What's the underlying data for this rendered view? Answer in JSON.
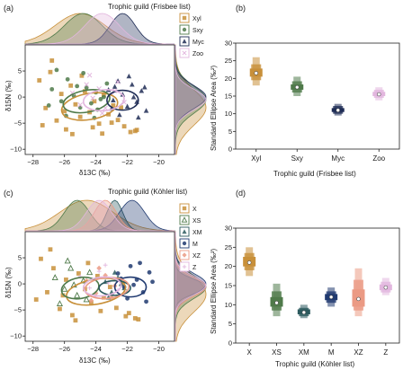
{
  "colors": {
    "Xyl": "#c8903a",
    "Sxy": "#4f7a4a",
    "Myc": "#1e2c55",
    "Zoo": "#e2b6de",
    "X": "#c8903a",
    "XS": "#4f7a4a",
    "XM": "#2c5a5e",
    "M": "#203a70",
    "XZ": "#eb9a84",
    "Z": "#e2b6de",
    "axis": "#222222"
  },
  "panels": {
    "a": {
      "panel_label": "(a)",
      "title": "Trophic guild (Frisbee list)",
      "xlabel": "δ13C (‰)",
      "ylabel": "δ15N (‰)",
      "xticks": [
        "−28",
        "−26",
        "−24",
        "−22",
        "−20"
      ],
      "yticks": [
        "−10",
        "−5",
        "0",
        "5"
      ],
      "legend": [
        "Xyl",
        "Sxy",
        "Myc",
        "Zoo"
      ]
    },
    "b": {
      "panel_label": "(b)",
      "xlabel": "Trophic guild (Frisbee list)",
      "ylabel": "Standard Ellipse Area (‰²)",
      "yticks": [
        "0",
        "5",
        "10",
        "15",
        "20",
        "25",
        "30"
      ]
    },
    "c": {
      "panel_label": "(c)",
      "title": "Trophic guild (Köhler list)",
      "xlabel": "δ13C (‰)",
      "ylabel": "δ15N (‰)",
      "xticks": [
        "−28",
        "−26",
        "−24",
        "−22",
        "−20"
      ],
      "yticks": [
        "−10",
        "−5",
        "0",
        "5"
      ],
      "legend": [
        "X",
        "XS",
        "XM",
        "M",
        "XZ",
        "Z"
      ]
    },
    "d": {
      "panel_label": "(d)",
      "xlabel": "Trophic guild (Köhler list)",
      "ylabel": "Standard Ellipse Area (‰²)",
      "yticks": [
        "0",
        "5",
        "10",
        "15",
        "20",
        "25",
        "30"
      ]
    }
  },
  "chart_data": [
    {
      "panel": "a",
      "type": "scatter",
      "title": "Trophic guild (Frisbee list)",
      "xlabel": "δ13C (‰)",
      "ylabel": "δ15N (‰)",
      "xlim": [
        -28.5,
        -19
      ],
      "ylim": [
        -11,
        10
      ],
      "legend": "right",
      "ellipses": [
        {
          "name": "Xyl",
          "cx": -24.4,
          "cy": -1.8,
          "rx": 1.8,
          "ry": 2.5,
          "angle": 10
        },
        {
          "name": "Sxy",
          "cx": -24.6,
          "cy": -0.8,
          "rx": 1.5,
          "ry": 2.1,
          "angle": 10
        },
        {
          "name": "Myc",
          "cx": -22.3,
          "cy": -0.6,
          "rx": 1.0,
          "ry": 1.9,
          "angle": 0
        },
        {
          "name": "Zoo",
          "cx": -23.5,
          "cy": -0.6,
          "rx": 1.3,
          "ry": 2.0,
          "angle": 5
        }
      ],
      "series": [
        {
          "name": "Xyl",
          "x": [
            -27.6,
            -27.2,
            -26.9,
            -26.5,
            -26.2,
            -25.9,
            -25.6,
            -25.3,
            -25.0,
            -24.7,
            -24.4,
            -24.1,
            -23.8,
            -23.5,
            -23.2,
            -22.9,
            -22.6,
            -22.2,
            -21.8,
            -21.4,
            -26.8,
            -25.5,
            -24.2,
            -23.0,
            -21.5,
            -26.0,
            -24.9,
            -23.6,
            -22.4,
            -27.4
          ],
          "y": [
            3.2,
            -2.1,
            4.8,
            -4.5,
            0.6,
            -6.2,
            2.2,
            -1.4,
            -3.8,
            1.1,
            -2.9,
            -0.8,
            -5.1,
            0.4,
            -3.3,
            -1.6,
            -4.4,
            -5.6,
            -6.7,
            -6.3,
            7.0,
            -7.1,
            -5.8,
            -4.9,
            -6.5,
            -2.7,
            4.1,
            -7.0,
            -2.0,
            -5.4
          ]
        },
        {
          "name": "Sxy",
          "x": [
            -26.8,
            -26.2,
            -25.8,
            -25.4,
            -25.0,
            -24.6,
            -24.3,
            -24.0,
            -23.7,
            -23.3,
            -25.9,
            -24.8,
            -23.9,
            -26.5,
            -25.2,
            -24.1,
            -27.0,
            -23.5
          ],
          "y": [
            1.5,
            -0.8,
            3.4,
            0.2,
            -2.0,
            1.8,
            -1.2,
            0.9,
            -0.4,
            2.6,
            -3.6,
            4.6,
            -2.4,
            5.2,
            2.1,
            -4.0,
            -1.6,
            0.0
          ]
        },
        {
          "name": "Myc",
          "x": [
            -23.2,
            -22.9,
            -22.6,
            -22.3,
            -22.0,
            -21.7,
            -21.4,
            -21.1,
            -20.8,
            -22.5,
            -21.9,
            -21.3,
            -22.8,
            -21.6,
            -20.9,
            -23.0
          ],
          "y": [
            1.4,
            -0.6,
            3.1,
            0.5,
            -1.8,
            2.4,
            -0.9,
            1.2,
            -2.6,
            -3.4,
            4.0,
            -3.9,
            2.0,
            0.0,
            1.9,
            -2.2
          ]
        },
        {
          "name": "Zoo",
          "x": [
            -25.5,
            -25.0,
            -24.6,
            -24.2,
            -23.8,
            -23.4,
            -23.0,
            -22.6,
            -22.2,
            -24.4,
            -23.6,
            -22.8
          ],
          "y": [
            0.8,
            -1.5,
            2.4,
            -0.2,
            1.6,
            -2.1,
            0.4,
            2.9,
            -1.0,
            4.2,
            -3.1,
            1.2
          ]
        }
      ],
      "marginal_x": [
        {
          "name": "Xyl",
          "mean": -25.0,
          "sd": 1.6
        },
        {
          "name": "Sxy",
          "mean": -24.8,
          "sd": 1.2
        },
        {
          "name": "Myc",
          "mean": -22.3,
          "sd": 0.8
        },
        {
          "name": "Zoo",
          "mean": -23.6,
          "sd": 1.1
        }
      ],
      "marginal_y": [
        {
          "name": "Xyl",
          "mean": -2.0,
          "sd": 3.4
        },
        {
          "name": "Sxy",
          "mean": -0.5,
          "sd": 2.6
        },
        {
          "name": "Myc",
          "mean": 0.0,
          "sd": 2.2
        },
        {
          "name": "Zoo",
          "mean": -0.5,
          "sd": 2.0
        }
      ]
    },
    {
      "panel": "b",
      "type": "box",
      "xlabel": "Trophic guild (Frisbee list)",
      "ylabel": "Standard Ellipse Area (‰²)",
      "ylim": [
        0,
        30
      ],
      "categories": [
        "Xyl",
        "Sxy",
        "Myc",
        "Zoo"
      ],
      "values": [
        {
          "mode": 21.5,
          "ci95": [
            18.0,
            26.0
          ],
          "ci75": [
            19.5,
            24.0
          ],
          "ci50": [
            20.5,
            22.8
          ]
        },
        {
          "mode": 17.5,
          "ci95": [
            15.0,
            20.5
          ],
          "ci75": [
            16.0,
            19.2
          ],
          "ci50": [
            16.8,
            18.3
          ]
        },
        {
          "mode": 11.0,
          "ci95": [
            9.5,
            12.8
          ],
          "ci75": [
            10.0,
            12.2
          ],
          "ci50": [
            10.5,
            11.6
          ]
        },
        {
          "mode": 15.5,
          "ci95": [
            13.8,
            17.5
          ],
          "ci75": [
            14.5,
            16.8
          ],
          "ci50": [
            15.0,
            16.2
          ]
        }
      ]
    },
    {
      "panel": "c",
      "type": "scatter",
      "title": "Trophic guild (Köhler list)",
      "xlabel": "δ13C (‰)",
      "ylabel": "δ15N (‰)",
      "xlim": [
        -28.5,
        -19
      ],
      "ylim": [
        -11,
        10
      ],
      "legend": "right",
      "ellipses": [
        {
          "name": "X",
          "cx": -24.0,
          "cy": -1.5,
          "rx": 1.9,
          "ry": 2.4,
          "angle": 10
        },
        {
          "name": "XS",
          "cx": -25.0,
          "cy": -0.8,
          "rx": 1.2,
          "ry": 2.0,
          "angle": 10
        },
        {
          "name": "XM",
          "cx": -22.8,
          "cy": -0.8,
          "rx": 1.0,
          "ry": 1.4,
          "angle": 0
        },
        {
          "name": "M",
          "cx": -21.8,
          "cy": -0.6,
          "rx": 1.0,
          "ry": 1.9,
          "angle": 0
        },
        {
          "name": "XZ",
          "cx": -23.3,
          "cy": -0.8,
          "rx": 1.4,
          "ry": 2.0,
          "angle": 5
        },
        {
          "name": "Z",
          "cx": -23.6,
          "cy": -0.5,
          "rx": 1.2,
          "ry": 1.8,
          "angle": 5
        }
      ],
      "series": [
        {
          "name": "X",
          "x": [
            -27.5,
            -27.1,
            -26.7,
            -26.3,
            -25.9,
            -25.5,
            -25.1,
            -24.7,
            -24.3,
            -23.9,
            -23.5,
            -23.1,
            -22.7,
            -22.3,
            -21.9,
            -21.5,
            -26.9,
            -25.3,
            -23.7,
            -22.1,
            -27.8,
            -24.5,
            -21.3,
            -26.1
          ],
          "y": [
            4.8,
            -1.6,
            3.0,
            -4.8,
            0.8,
            -6.0,
            2.0,
            -1.0,
            -3.6,
            1.5,
            -2.6,
            -0.6,
            -4.6,
            0.2,
            -5.6,
            -6.6,
            6.6,
            -7.0,
            -5.2,
            -6.2,
            -3.0,
            4.0,
            -6.8,
            -2.2
          ]
        },
        {
          "name": "XS",
          "x": [
            -26.6,
            -26.0,
            -25.6,
            -25.2,
            -24.8,
            -24.4,
            -26.3,
            -25.4,
            -24.6,
            -25.8
          ],
          "y": [
            1.2,
            -1.0,
            3.0,
            -2.2,
            0.6,
            2.2,
            -3.8,
            -0.2,
            -3.0,
            4.4
          ]
        },
        {
          "name": "XM",
          "x": [
            -23.4,
            -23.0,
            -22.6,
            -22.2,
            -23.2,
            -22.4,
            -22.8
          ],
          "y": [
            0.4,
            -1.6,
            1.2,
            -0.8,
            -2.6,
            0.0,
            2.2
          ]
        },
        {
          "name": "M",
          "x": [
            -22.6,
            -22.2,
            -21.8,
            -21.4,
            -21.0,
            -20.6,
            -22.0,
            -21.2,
            -20.8,
            -21.6,
            -22.4,
            -20.4
          ],
          "y": [
            2.0,
            -0.6,
            3.4,
            0.8,
            -1.6,
            2.2,
            -2.8,
            4.0,
            -3.4,
            -0.2,
            1.0,
            0.4
          ]
        },
        {
          "name": "XZ",
          "x": [
            -24.6,
            -24.0,
            -23.4,
            -22.8,
            -23.8,
            -23.0,
            -24.3
          ],
          "y": [
            0.6,
            -1.8,
            1.6,
            -0.4,
            3.0,
            -2.6,
            -3.2
          ]
        },
        {
          "name": "Z",
          "x": [
            -25.0,
            -24.4,
            -23.8,
            -23.2,
            -22.6,
            -24.0,
            -23.4
          ],
          "y": [
            1.4,
            -0.8,
            2.4,
            0.2,
            -1.2,
            -2.4,
            3.6
          ]
        }
      ],
      "marginal_x": [
        {
          "name": "X",
          "mean": -24.6,
          "sd": 1.7
        },
        {
          "name": "XS",
          "mean": -25.2,
          "sd": 0.8
        },
        {
          "name": "XM",
          "mean": -22.8,
          "sd": 0.5
        },
        {
          "name": "M",
          "mean": -21.7,
          "sd": 0.8
        },
        {
          "name": "XZ",
          "mean": -23.4,
          "sd": 0.7
        },
        {
          "name": "Z",
          "mean": -23.8,
          "sd": 0.8
        }
      ],
      "marginal_y": [
        {
          "name": "X",
          "mean": -2.0,
          "sd": 3.4
        },
        {
          "name": "XS",
          "mean": -0.6,
          "sd": 2.2
        },
        {
          "name": "XM",
          "mean": -0.5,
          "sd": 1.4
        },
        {
          "name": "M",
          "mean": 0.0,
          "sd": 2.0
        },
        {
          "name": "XZ",
          "mean": -0.6,
          "sd": 1.8
        },
        {
          "name": "Z",
          "mean": -0.3,
          "sd": 1.8
        }
      ]
    },
    {
      "panel": "d",
      "type": "box",
      "xlabel": "Trophic guild (Köhler list)",
      "ylabel": "Standard Ellipse Area (‰²)",
      "ylim": [
        0,
        30
      ],
      "categories": [
        "X",
        "XS",
        "XM",
        "M",
        "XZ",
        "Z"
      ],
      "values": [
        {
          "mode": 21.0,
          "ci95": [
            17.5,
            25.0
          ],
          "ci75": [
            19.0,
            23.5
          ],
          "ci50": [
            20.0,
            22.5
          ]
        },
        {
          "mode": 10.5,
          "ci95": [
            7.0,
            15.5
          ],
          "ci75": [
            8.5,
            13.5
          ],
          "ci50": [
            9.5,
            12.0
          ]
        },
        {
          "mode": 8.0,
          "ci95": [
            6.5,
            10.0
          ],
          "ci75": [
            7.0,
            9.2
          ],
          "ci50": [
            7.5,
            8.8
          ]
        },
        {
          "mode": 12.0,
          "ci95": [
            9.5,
            14.5
          ],
          "ci75": [
            10.5,
            13.5
          ],
          "ci50": [
            11.2,
            12.8
          ]
        },
        {
          "mode": 11.5,
          "ci95": [
            7.0,
            19.5
          ],
          "ci75": [
            8.5,
            16.5
          ],
          "ci50": [
            9.5,
            14.0
          ]
        },
        {
          "mode": 14.5,
          "ci95": [
            12.5,
            17.0
          ],
          "ci75": [
            13.2,
            16.0
          ],
          "ci50": [
            13.8,
            15.3
          ]
        }
      ]
    }
  ]
}
